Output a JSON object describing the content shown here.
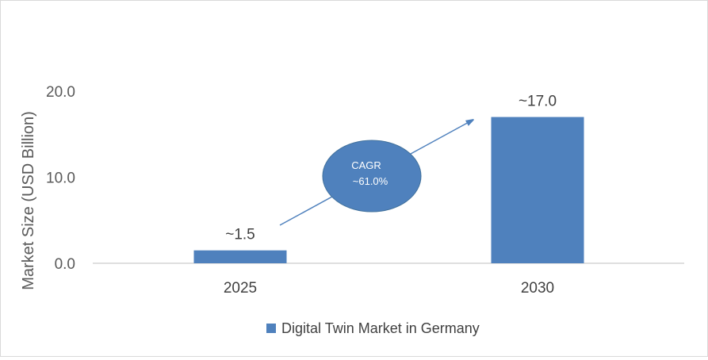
{
  "chart_data": {
    "type": "bar",
    "categories": [
      "2025",
      "2030"
    ],
    "series": [
      {
        "name": "Digital Twin Market in Germany",
        "values": [
          1.5,
          17.0
        ]
      }
    ],
    "data_labels": [
      "~1.5",
      "~17.0"
    ],
    "ylabel": "Market Size (USD Billion)",
    "xlabel": "",
    "ylim": [
      0,
      20
    ],
    "yticks": [
      0,
      10,
      20
    ],
    "ytick_labels": [
      "0.0",
      "10.0",
      "20.0"
    ],
    "grid": false,
    "legend_position": "bottom",
    "annotation": {
      "line1": "CAGR",
      "line2": "~61.0%"
    },
    "colors": {
      "bar": "#4f81bd",
      "ellipse_fill": "#4f81bd",
      "ellipse_stroke": "#41719c",
      "arrow": "#4f81bd",
      "axis": "#bfbfbf",
      "text": "#404040"
    }
  }
}
